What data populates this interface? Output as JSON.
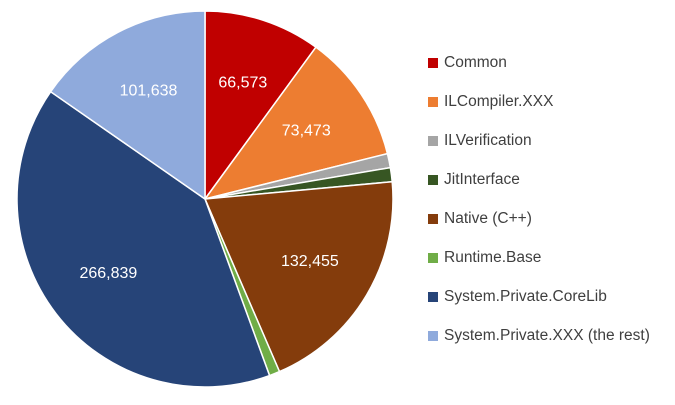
{
  "chart_data": {
    "type": "pie",
    "title": "",
    "categories": [
      "Common",
      "ILCompiler.XXX",
      "ILVerification",
      "JitInterface",
      "Native (C++)",
      "Runtime.Base",
      "System.Private.CoreLib",
      "System.Private.XXX (the rest)"
    ],
    "values": [
      66573,
      73473,
      8000,
      8000,
      132455,
      6000,
      266839,
      101638
    ],
    "data_labels": [
      "66,573",
      "73,473",
      "",
      "",
      "132,455",
      "",
      "266,839",
      "101,638"
    ],
    "colors": [
      "#c00000",
      "#ed7d31",
      "#a5a5a5",
      "#375623",
      "#843c0c",
      "#70ad47",
      "#264478",
      "#8faadc"
    ],
    "start_angle_deg": 0,
    "direction": "clockwise",
    "legend_position": "right"
  }
}
